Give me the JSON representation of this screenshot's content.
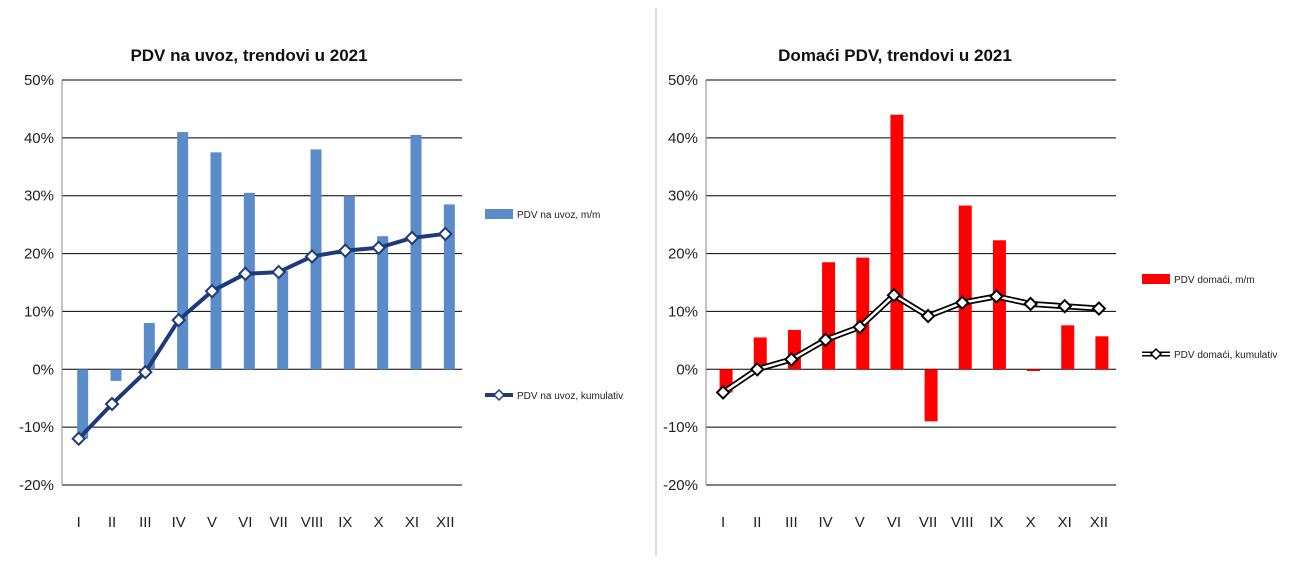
{
  "chart_data": [
    {
      "type": "bar",
      "title": "PDV na uvoz, trendovi u 2021",
      "categories": [
        "I",
        "II",
        "III",
        "IV",
        "V",
        "VI",
        "VII",
        "VIII",
        "IX",
        "X",
        "XI",
        "XII"
      ],
      "yticks": [
        "50%",
        "40%",
        "30%",
        "20%",
        "10%",
        "0%",
        "-10%",
        "-20%"
      ],
      "ylim": [
        -20,
        50
      ],
      "grid": true,
      "legend_position": "right",
      "series": [
        {
          "name": "PDV na uvoz, m/m",
          "kind": "bar",
          "color": "#5B8CC9",
          "values": [
            -12,
            -2,
            8,
            41,
            37.5,
            30.5,
            17,
            38,
            30,
            23,
            40.5,
            28.5
          ]
        },
        {
          "name": "PDV na uvoz, kumulativ",
          "kind": "line",
          "color": "#1F3A7A",
          "values": [
            -12,
            -6,
            -0.5,
            8.5,
            13.5,
            16.5,
            16.8,
            19.5,
            20.5,
            21,
            22.7,
            23.4
          ]
        }
      ]
    },
    {
      "type": "bar",
      "title": "Domaći PDV, trendovi u 2021",
      "categories": [
        "I",
        "II",
        "III",
        "IV",
        "V",
        "VI",
        "VII",
        "VIII",
        "IX",
        "X",
        "XI",
        "XII"
      ],
      "yticks": [
        "50%",
        "40%",
        "30%",
        "20%",
        "10%",
        "0%",
        "-10%",
        "-20%"
      ],
      "ylim": [
        -20,
        50
      ],
      "grid": true,
      "legend_position": "right",
      "series": [
        {
          "name": "PDV domaći, m/m",
          "kind": "bar",
          "color": "#FF0000",
          "values": [
            -4,
            5.5,
            6.8,
            18.5,
            19.3,
            44,
            -9,
            28.3,
            22.3,
            -0.3,
            7.6,
            5.7
          ]
        },
        {
          "name": "PDV domaći, kumulativ",
          "kind": "line",
          "color": "#000000",
          "values": [
            -4,
            0,
            1.7,
            5.1,
            7.3,
            12.8,
            9.2,
            11.5,
            12.6,
            11.3,
            10.9,
            10.5
          ]
        }
      ]
    }
  ]
}
